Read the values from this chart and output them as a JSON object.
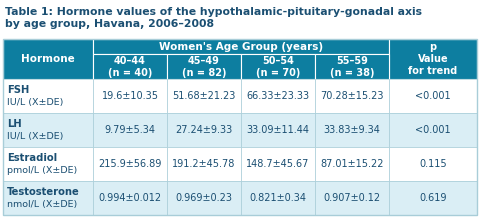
{
  "title_line1": "Table 1: Hormone values of the hypothalamic-pituitary-gonadal axis",
  "title_line2": "by age group, Havana, 2006–2008",
  "header_main": "Women's Age Group (years)",
  "header_bg": "#0d7ea0",
  "row_bg_light": "#daeef5",
  "row_bg_white": "#ffffff",
  "col_headers": [
    "40–44\n(n = 40)",
    "45–49\n(n = 82)",
    "50–54\n(n = 70)",
    "55–59\n(n = 38)"
  ],
  "p_header": "p\nValue\nfor trend",
  "hormone_col": [
    [
      "FSH",
      "IU/L (X±DE)"
    ],
    [
      "LH",
      "IU/L (X±DE)"
    ],
    [
      "Estradiol",
      "pmol/L (X±DE)"
    ],
    [
      "Testosterone",
      "nmol/L (X±DE)"
    ]
  ],
  "data": [
    [
      "19.6±10.35",
      "51.68±21.23",
      "66.33±23.33",
      "70.28±15.23",
      "<0.001"
    ],
    [
      "9.79±5.34",
      "27.24±9.33",
      "33.09±11.44",
      "33.83±9.34",
      "<0.001"
    ],
    [
      "215.9±56.89",
      "191.2±45.78",
      "148.7±45.67",
      "87.01±15.22",
      "0.115"
    ],
    [
      "0.994±0.012",
      "0.969±0.23",
      "0.821±0.34",
      "0.907±0.12",
      "0.619"
    ]
  ],
  "text_color_header": "#ffffff",
  "text_color_data": "#1b4f72",
  "title_color": "#1b4f72",
  "border_color": "#ffffff",
  "grid_color": "#a8cdd8",
  "title_fontsize": 7.8,
  "header_fontsize": 7.5,
  "subheader_fontsize": 7.0,
  "data_fontsize": 7.0,
  "hormone_name_fontsize": 7.2,
  "hormone_unit_fontsize": 6.8
}
